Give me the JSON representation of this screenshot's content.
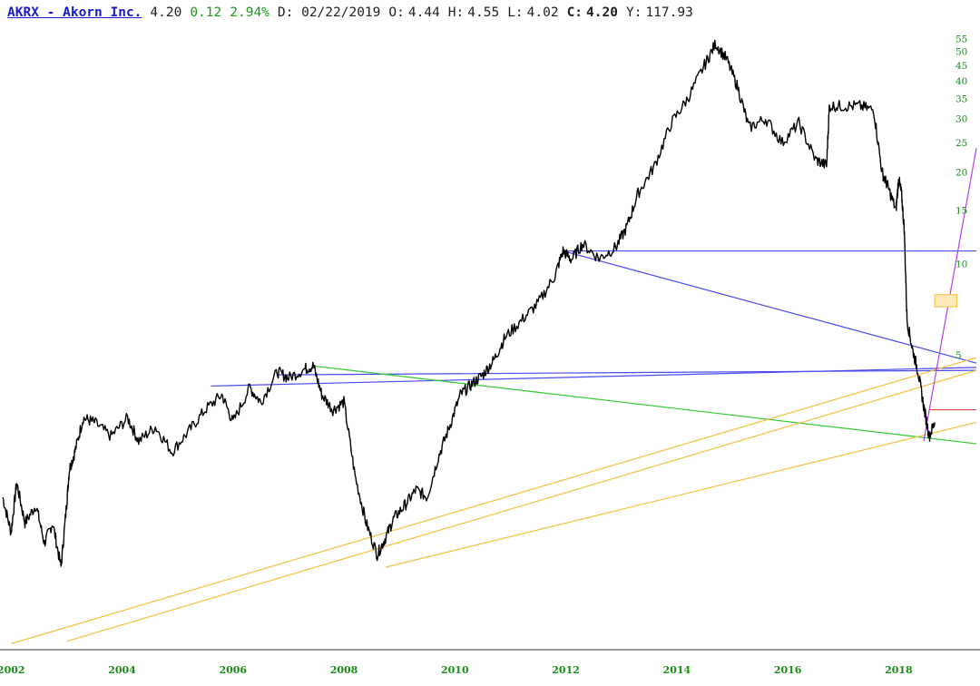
{
  "header": {
    "ticker": "AKRX - Akorn Inc.",
    "last": "4.20",
    "change": "0.12",
    "change_pct": "2.94%",
    "date": "D: 02/22/2019",
    "open_label": "O:",
    "open": "4.44",
    "high_label": "H:",
    "high": "4.55",
    "low_label": "L:",
    "low": "4.02",
    "close_label": "C:",
    "close": "4.20",
    "years_label": "Y:",
    "years": "117.93"
  },
  "colors": {
    "price": "#000000",
    "blue_line": "#4a4aee",
    "green_line": "#33cc33",
    "orange_line": "#f5c040",
    "purple_line": "#b040f0",
    "red_line": "#e04040",
    "tick_text": "#1a8c1a"
  },
  "chart_data": {
    "type": "line",
    "scale": "log",
    "title": "",
    "xlabel": "",
    "ylabel": "",
    "x_ticks": [
      "2002",
      "2004",
      "2006",
      "2008",
      "2010",
      "2012",
      "2014",
      "2016",
      "2018"
    ],
    "y_ticks": [
      5,
      10,
      15,
      20,
      25,
      30,
      35,
      40,
      45,
      50,
      55
    ],
    "xlim": [
      2001.8,
      2019.4
    ],
    "ylim": [
      0.55,
      60
    ],
    "grid": false,
    "series": [
      {
        "x": [
          2001.85,
          2002.0,
          2002.1,
          2002.25,
          2002.45,
          2002.6,
          2002.75,
          2002.9,
          2003.0,
          2003.05,
          2003.15,
          2003.3,
          2003.5,
          2003.8,
          2004.1,
          2004.3,
          2004.6,
          2004.9,
          2005.2,
          2005.5,
          2005.8,
          2006.0,
          2006.3,
          2006.5,
          2006.8,
          2007.0,
          2007.3,
          2007.45,
          2007.6,
          2007.8,
          2008.0,
          2008.2,
          2008.4,
          2008.6,
          2008.75,
          2008.9,
          2009.1,
          2009.3,
          2009.5,
          2009.7,
          2009.9,
          2010.1,
          2010.3,
          2010.5,
          2010.7,
          2010.9,
          2011.2,
          2011.5,
          2011.8,
          2011.95,
          2012.1,
          2012.3,
          2012.6,
          2012.9,
          2013.1,
          2013.3,
          2013.6,
          2013.9,
          2014.2,
          2014.5,
          2014.7,
          2014.9,
          2015.1,
          2015.3,
          2015.6,
          2015.9,
          2016.2,
          2016.5,
          2016.7,
          2016.75,
          2017.0,
          2017.3,
          2017.55,
          2017.7,
          2017.8,
          2017.95,
          2018.0,
          2018.05,
          2018.1,
          2018.15,
          2018.25,
          2018.35,
          2018.45,
          2018.55,
          2018.65
        ],
        "y": [
          1.7,
          1.3,
          1.9,
          1.4,
          1.6,
          1.2,
          1.4,
          1.0,
          1.6,
          2.1,
          2.4,
          3.1,
          3.0,
          2.7,
          3.1,
          2.6,
          2.9,
          2.4,
          2.8,
          3.3,
          3.7,
          3.0,
          3.9,
          3.5,
          4.4,
          4.2,
          4.5,
          4.6,
          3.7,
          3.3,
          3.5,
          2.0,
          1.4,
          1.1,
          1.25,
          1.45,
          1.6,
          1.8,
          1.7,
          2.3,
          2.9,
          3.7,
          4.0,
          4.3,
          4.8,
          5.7,
          6.5,
          7.4,
          9.1,
          11.0,
          10.3,
          11.6,
          10.4,
          11.3,
          13.2,
          17.0,
          21.0,
          29.0,
          35.0,
          45.0,
          53.0,
          47.0,
          38.0,
          28.0,
          30.0,
          25.0,
          29.0,
          22.0,
          21.0,
          33.0,
          33.0,
          33.0,
          32.0,
          20.0,
          18.0,
          15.0,
          19.0,
          17.0,
          13.0,
          6.5,
          5.2,
          4.4,
          3.4,
          2.7,
          3.0
        ]
      }
    ],
    "annotations": [
      {
        "type": "trendline",
        "color": "blue",
        "points": [
          [
            2011.95,
            11.0
          ],
          [
            2019.4,
            11.0
          ]
        ]
      },
      {
        "type": "trendline",
        "color": "blue",
        "points": [
          [
            2011.95,
            11.0
          ],
          [
            2019.4,
            4.7
          ]
        ]
      },
      {
        "type": "trendline",
        "color": "blue",
        "points": [
          [
            2005.6,
            3.95
          ],
          [
            2019.4,
            4.55
          ]
        ]
      },
      {
        "type": "trendline",
        "color": "blue",
        "points": [
          [
            2006.8,
            4.3
          ],
          [
            2019.4,
            4.45
          ]
        ]
      },
      {
        "type": "trendline",
        "color": "green",
        "points": [
          [
            2007.45,
            4.6
          ],
          [
            2019.4,
            2.55
          ]
        ]
      },
      {
        "type": "trendline",
        "color": "orange",
        "points": [
          [
            2002.0,
            0.56
          ],
          [
            2019.4,
            4.9
          ]
        ]
      },
      {
        "type": "trendline",
        "color": "orange",
        "points": [
          [
            2003.0,
            0.57
          ],
          [
            2019.4,
            4.45
          ]
        ]
      },
      {
        "type": "trendline",
        "color": "orange",
        "points": [
          [
            2008.75,
            1.0
          ],
          [
            2019.4,
            3.0
          ]
        ]
      },
      {
        "type": "trendline",
        "color": "purple",
        "points": [
          [
            2018.45,
            2.6
          ],
          [
            2019.4,
            24.0
          ]
        ]
      },
      {
        "type": "trendline",
        "color": "red",
        "points": [
          [
            2018.55,
            3.3
          ],
          [
            2019.4,
            3.3
          ]
        ]
      },
      {
        "type": "highlight_box",
        "color": "orange",
        "points": [
          [
            2018.65,
            7.9
          ],
          [
            2019.05,
            7.2
          ]
        ]
      }
    ]
  }
}
